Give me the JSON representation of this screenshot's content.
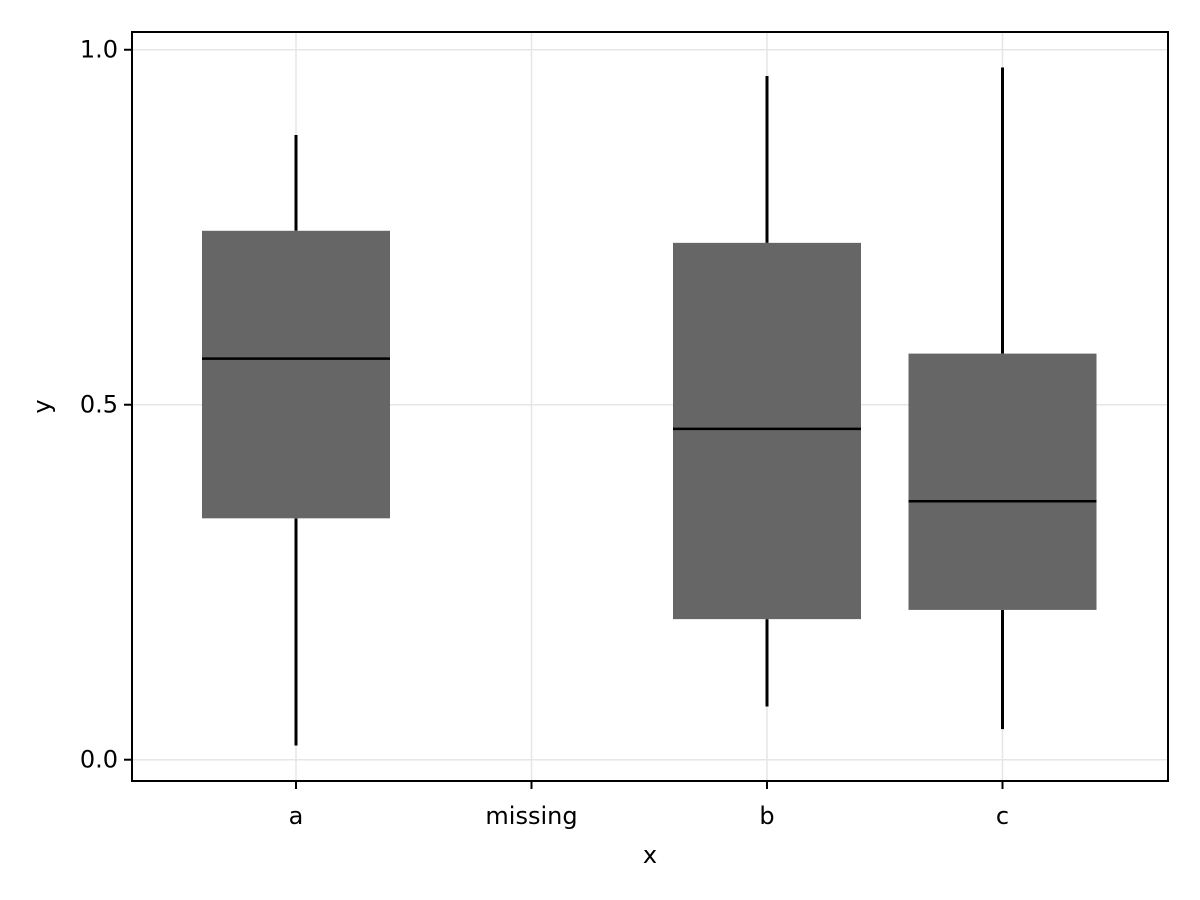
{
  "chart_data": {
    "type": "boxplot",
    "title": "",
    "xlabel": "x",
    "ylabel": "y",
    "categories": [
      "a",
      "missing",
      "b",
      "c"
    ],
    "ylim": [
      -0.03,
      1.025
    ],
    "yticks": [
      0.0,
      0.5,
      1.0
    ],
    "ytick_labels": [
      "0.0",
      "0.5",
      "1.0"
    ],
    "grid": true,
    "box_color": "#666666",
    "median_color": "#000000",
    "whisker_color": "#000000",
    "boxes": [
      {
        "category": "a",
        "min": 0.02,
        "q1": 0.34,
        "median": 0.565,
        "q3": 0.745,
        "max": 0.88
      },
      {
        "category": "missing",
        "min": null,
        "q1": null,
        "median": null,
        "q3": null,
        "max": null
      },
      {
        "category": "b",
        "min": 0.075,
        "q1": 0.198,
        "median": 0.466,
        "q3": 0.728,
        "max": 0.963
      },
      {
        "category": "c",
        "min": 0.043,
        "q1": 0.211,
        "median": 0.364,
        "q3": 0.572,
        "max": 0.975
      }
    ]
  }
}
